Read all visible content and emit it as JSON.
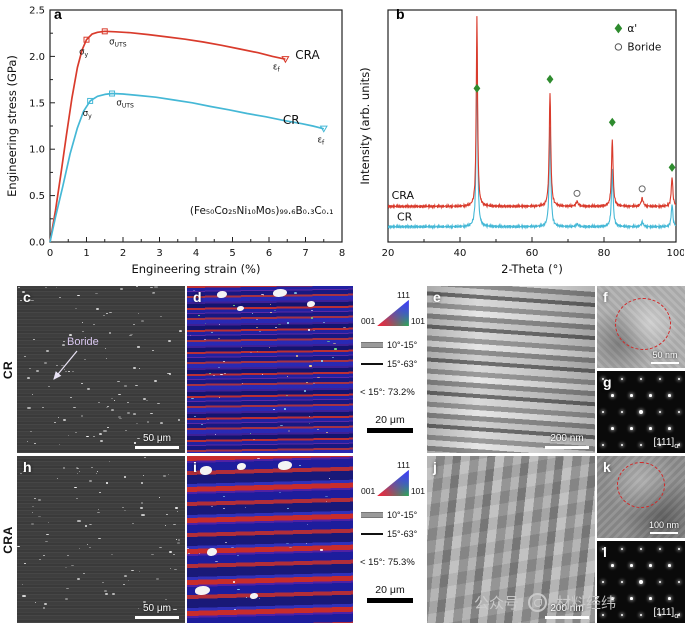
{
  "panels": {
    "a": "a",
    "b": "b",
    "c": "c",
    "d": "d",
    "e": "e",
    "f": "f",
    "g": "g",
    "h": "h",
    "i": "i",
    "j": "j",
    "k": "k",
    "l": "l"
  },
  "rows": {
    "cr": "CR",
    "cra": "CRA"
  },
  "colors": {
    "cra": "#d93b2c",
    "cr": "#45b8d6",
    "alpha_marker": "#2e8b2e"
  },
  "chart_data": [
    {
      "panel": "a",
      "type": "line",
      "xlabel": "Engineering strain (%)",
      "ylabel": "Engineering stress (GPa)",
      "xlim": [
        0,
        8
      ],
      "ylim": [
        0,
        2.5
      ],
      "xticks": [
        0,
        1,
        2,
        3,
        4,
        5,
        6,
        7,
        8
      ],
      "yticks": [
        0,
        0.5,
        1,
        1.5,
        2,
        2.5
      ],
      "annotation": {
        "text": "(Fe₅₀Co₂₅Ni₁₀Mo₅)₉₉.₆B₀.₃C₀.₁",
        "x": 5.8,
        "y": 0.3
      },
      "series": [
        {
          "name": "CRA",
          "color": "#d93b2c",
          "x": [
            0,
            0.15,
            0.3,
            0.45,
            0.6,
            0.75,
            0.88,
            1.0,
            1.15,
            1.3,
            1.5,
            1.8,
            2.2,
            2.7,
            3.2,
            3.7,
            4.2,
            4.7,
            5.2,
            5.7,
            6.1,
            6.45
          ],
          "y": [
            0,
            0.34,
            0.74,
            1.15,
            1.55,
            1.88,
            2.07,
            2.18,
            2.24,
            2.26,
            2.27,
            2.265,
            2.255,
            2.235,
            2.21,
            2.185,
            2.155,
            2.12,
            2.08,
            2.04,
            2.0,
            1.97
          ]
        },
        {
          "name": "CR",
          "color": "#45b8d6",
          "x": [
            0,
            0.15,
            0.35,
            0.55,
            0.75,
            0.92,
            1.1,
            1.3,
            1.5,
            1.7,
            2.0,
            2.4,
            2.9,
            3.4,
            3.9,
            4.4,
            4.9,
            5.4,
            5.9,
            6.4,
            6.9,
            7.2,
            7.5
          ],
          "y": [
            0,
            0.27,
            0.6,
            0.95,
            1.23,
            1.41,
            1.52,
            1.57,
            1.59,
            1.6,
            1.595,
            1.58,
            1.56,
            1.53,
            1.5,
            1.46,
            1.425,
            1.385,
            1.35,
            1.31,
            1.275,
            1.25,
            1.22
          ]
        }
      ],
      "point_markers": [
        {
          "x": 1.0,
          "y": 2.18,
          "shape": "square",
          "color": "#d93b2c"
        },
        {
          "x": 1.5,
          "y": 2.27,
          "shape": "square",
          "color": "#d93b2c"
        },
        {
          "x": 6.45,
          "y": 1.97,
          "shape": "triangle",
          "color": "#d93b2c"
        },
        {
          "x": 1.1,
          "y": 1.52,
          "shape": "square",
          "color": "#45b8d6"
        },
        {
          "x": 1.7,
          "y": 1.6,
          "shape": "square",
          "color": "#45b8d6"
        },
        {
          "x": 7.5,
          "y": 1.22,
          "shape": "triangle",
          "color": "#45b8d6"
        }
      ],
      "labels": [
        {
          "x": 0.92,
          "y": 2.02,
          "main": "σ",
          "sub": "y",
          "color": "#d93b2c",
          "size": 8.5,
          "anchor": "middle"
        },
        {
          "x": 1.62,
          "y": 2.13,
          "main": "σ",
          "sub": "UTS",
          "color": "#d93b2c",
          "size": 8.5,
          "anchor": "start"
        },
        {
          "x": 6.2,
          "y": 1.86,
          "main": "ε",
          "sub": "f",
          "color": "#d93b2c",
          "size": 8.5,
          "anchor": "middle"
        },
        {
          "x": 6.72,
          "y": 1.97,
          "main": "CRA",
          "sub": "",
          "color": "#d93b2c",
          "size": 12,
          "anchor": "start"
        },
        {
          "x": 1.02,
          "y": 1.36,
          "main": "σ",
          "sub": "y",
          "color": "#45b8d6",
          "size": 8.5,
          "anchor": "middle"
        },
        {
          "x": 1.82,
          "y": 1.47,
          "main": "σ",
          "sub": "UTS",
          "color": "#45b8d6",
          "size": 8.5,
          "anchor": "start"
        },
        {
          "x": 7.42,
          "y": 1.07,
          "main": "ε",
          "sub": "f",
          "color": "#45b8d6",
          "size": 8.5,
          "anchor": "middle"
        },
        {
          "x": 6.38,
          "y": 1.27,
          "main": "CR",
          "sub": "",
          "color": "#45b8d6",
          "size": 12,
          "anchor": "start"
        }
      ]
    },
    {
      "panel": "b",
      "type": "line",
      "xlabel": "2-Theta (°)",
      "ylabel": "Intensity (arb. units)",
      "xlim": [
        20,
        100
      ],
      "xticks": [
        20,
        40,
        60,
        80,
        100
      ],
      "legend": [
        {
          "label": "α'",
          "marker": "diamond",
          "color": "#2e8b2e"
        },
        {
          "label": "Boride",
          "marker": "circle",
          "color": "#555555"
        }
      ],
      "series": [
        {
          "name": "CRA",
          "color": "#d93b2c",
          "offset": 0.155,
          "label_x": 21,
          "label_y": 0.19,
          "peaks": [
            {
              "pos": 44.7,
              "h": 0.845,
              "w": 0.22
            },
            {
              "pos": 65.0,
              "h": 0.5,
              "w": 0.26
            },
            {
              "pos": 82.3,
              "h": 0.3,
              "w": 0.26
            },
            {
              "pos": 98.9,
              "h": 0.13,
              "w": 0.26
            },
            {
              "pos": 72.5,
              "h": 0.022,
              "w": 0.35
            },
            {
              "pos": 90.6,
              "h": 0.035,
              "w": 0.35
            }
          ]
        },
        {
          "name": "CR",
          "color": "#45b8d6",
          "offset": 0.065,
          "label_x": 22.5,
          "label_y": 0.095,
          "peaks": [
            {
              "pos": 44.7,
              "h": 0.8,
              "w": 0.22
            },
            {
              "pos": 65.0,
              "h": 0.44,
              "w": 0.26
            },
            {
              "pos": 82.3,
              "h": 0.26,
              "w": 0.26
            },
            {
              "pos": 98.9,
              "h": 0.1,
              "w": 0.26
            },
            {
              "pos": 72.5,
              "h": 0.012,
              "w": 0.35
            },
            {
              "pos": 90.6,
              "h": 0.02,
              "w": 0.35
            }
          ]
        }
      ],
      "peak_markers": [
        {
          "x": 44.7,
          "yf": 0.68,
          "shape": "diamond",
          "color": "#2e8b2e"
        },
        {
          "x": 65.0,
          "yf": 0.72,
          "shape": "diamond",
          "color": "#2e8b2e"
        },
        {
          "x": 82.3,
          "yf": 0.53,
          "shape": "diamond",
          "color": "#2e8b2e"
        },
        {
          "x": 98.9,
          "yf": 0.33,
          "shape": "diamond",
          "color": "#2e8b2e"
        },
        {
          "x": 72.5,
          "yf": 0.215,
          "shape": "circle",
          "color": "#666666"
        },
        {
          "x": 90.6,
          "yf": 0.235,
          "shape": "circle",
          "color": "#666666"
        }
      ]
    }
  ],
  "ebsd_legend": {
    "ipf_labels": {
      "c001": "001",
      "c101": "101",
      "c111": "111"
    },
    "boundaries": [
      {
        "label": "10°-15°"
      },
      {
        "label": "15°-63°"
      }
    ],
    "cr_fraction": "< 15°: 73.2%",
    "cra_fraction": "< 15°: 75.3%",
    "scalebar": "20 μm"
  },
  "micrographs": {
    "c": {
      "scalebar": "50 μm",
      "annotation": "Boride"
    },
    "e": {
      "scalebar": "200 nm"
    },
    "f": {
      "scalebar": "50 nm"
    },
    "g": {
      "zone_main": "[111]",
      "zone_sub": "α'"
    },
    "h": {
      "scalebar": "50 μm"
    },
    "j": {
      "scalebar": "200 nm"
    },
    "k": {
      "scalebar": "100 nm"
    },
    "l": {
      "zone_main": "[111]",
      "zone_sub": "α'"
    }
  },
  "watermark": {
    "left": "公众号",
    "right": "材料经纬"
  }
}
